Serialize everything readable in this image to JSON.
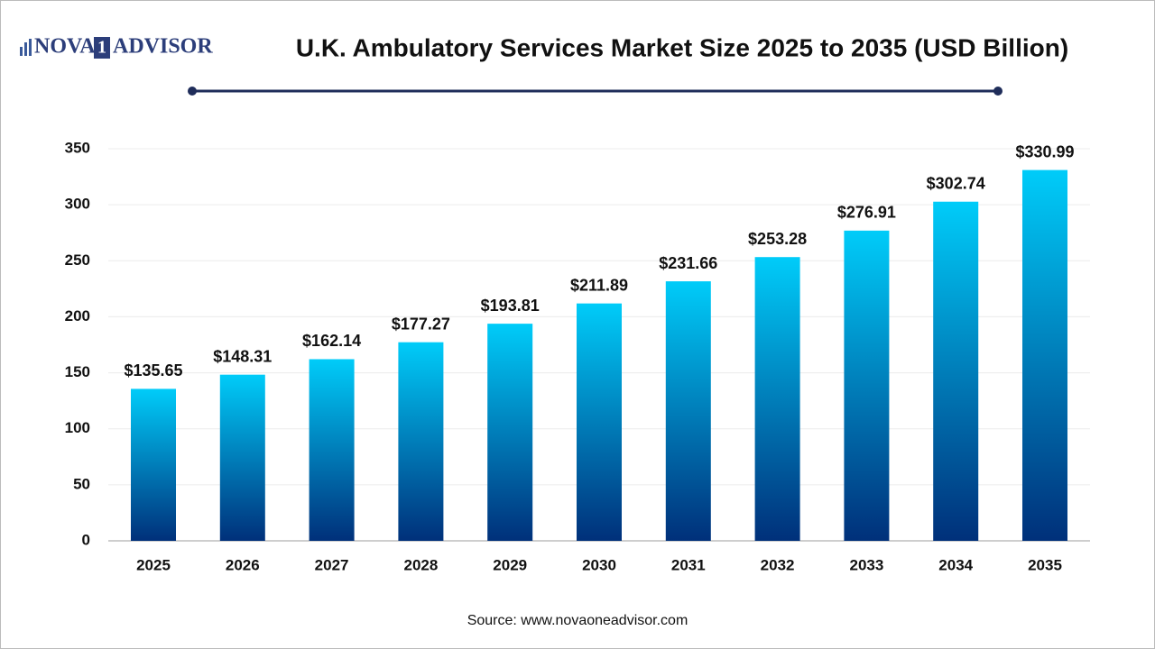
{
  "logo": {
    "left": "NOVA",
    "mid": "1",
    "right": "ADVISOR"
  },
  "chart_data": {
    "type": "bar",
    "title": "U.K. Ambulatory Services Market Size 2025 to 2035 (USD Billion)",
    "source": "Source: www.novaoneadvisor.com",
    "categories": [
      "2025",
      "2026",
      "2027",
      "2028",
      "2029",
      "2030",
      "2031",
      "2032",
      "2033",
      "2034",
      "2035"
    ],
    "values": [
      135.65,
      148.31,
      162.14,
      177.27,
      193.81,
      211.89,
      231.66,
      253.28,
      276.91,
      302.74,
      330.99
    ],
    "value_labels": [
      "$135.65",
      "$148.31",
      "$162.14",
      "$177.27",
      "$193.81",
      "$211.89",
      "$231.66",
      "$253.28",
      "$276.91",
      "$302.74",
      "$330.99"
    ],
    "gradient": [
      "#00ccf9",
      "#00307a"
    ],
    "ylim": [
      0,
      350
    ],
    "yticks": [
      0,
      50,
      100,
      150,
      200,
      250,
      300,
      350
    ],
    "grid": true
  }
}
